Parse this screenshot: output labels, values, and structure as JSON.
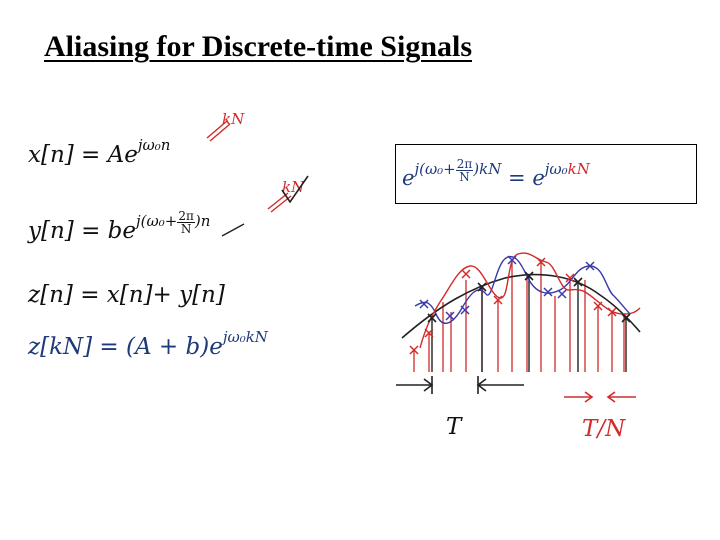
{
  "slide": {
    "title": "Aliasing for Discrete-time Signals"
  },
  "equations": {
    "x_main": "x[n] = Ae",
    "x_exp": "jω₀n",
    "x_kn": "kN",
    "y_main": "y[n] = be",
    "y_exp_a": "j(ω₀+",
    "y_exp_num": "2π",
    "y_exp_den": "N",
    "y_exp_b": ")n",
    "y_kn": "kN",
    "z_line": "z[n] = x[n]+ y[n]",
    "z_kn_main": "z[kN] = (A + b)e",
    "z_kn_exp": "jω₀kN"
  },
  "boxed_identity": {
    "lhs_base": "e",
    "lhs_exp_a": "j(ω₀+",
    "lhs_exp_num": "2π",
    "lhs_exp_den": "N",
    "lhs_exp_b": ")",
    "lhs_exp_kn": "kN",
    "eq_sign": " = e",
    "rhs_exp_a": "jω₀",
    "rhs_exp_kn": "kN"
  },
  "diagram": {
    "label_T": "T",
    "label_T_over_N": "T/N"
  },
  "colors": {
    "text": "#111111",
    "blue": "#1f3a78",
    "red": "#d42a2a",
    "sketch_black": "#222222",
    "sketch_blue": "#3a3aa8"
  }
}
